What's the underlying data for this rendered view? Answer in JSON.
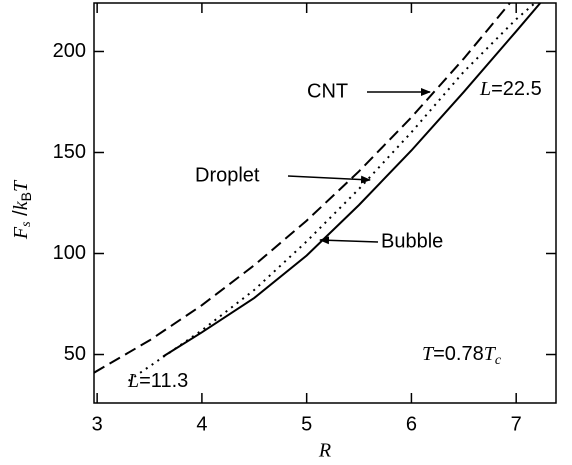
{
  "chart_data": {
    "type": "line",
    "x_label": "R",
    "y_label": [
      "F",
      "s",
      " /",
      "k",
      "B",
      "T"
    ],
    "annotations": {
      "T_label": [
        "T",
        "=0.78",
        "T",
        "c"
      ],
      "L_large": [
        "L",
        "=22.5"
      ],
      "L_small": [
        "L",
        "=11.3"
      ]
    },
    "xlim": [
      2.97,
      7.38
    ],
    "ylim": [
      26,
      224
    ],
    "xticks": [
      3,
      4,
      5,
      6,
      7
    ],
    "yticks": [
      50,
      100,
      150,
      200
    ],
    "series": [
      {
        "name": "CNT",
        "color": "#000000",
        "line_style": "dashed",
        "x": [
          2.97,
          3.5,
          4,
          4.5,
          5,
          5.5,
          6,
          6.5,
          6.94
        ],
        "values": [
          41,
          57,
          74.4,
          94.2,
          116.3,
          140.7,
          167.4,
          196.5,
          224
        ]
      },
      {
        "name": "Droplet",
        "color": "#000000",
        "line_style": "dotted",
        "x": [
          3.3,
          4,
          4.5,
          5,
          5.5,
          6,
          6.5,
          7,
          7.18
        ],
        "values": [
          37,
          62,
          82,
          106,
          132,
          160,
          190,
          216,
          224
        ]
      },
      {
        "name": "Bubble",
        "color": "#000000",
        "line_style": "solid",
        "x": [
          3.63,
          4,
          4.5,
          5,
          5.5,
          6,
          6.5,
          7,
          7.23
        ],
        "values": [
          49,
          61,
          78,
          99,
          124,
          151,
          180,
          210,
          224
        ]
      }
    ]
  }
}
